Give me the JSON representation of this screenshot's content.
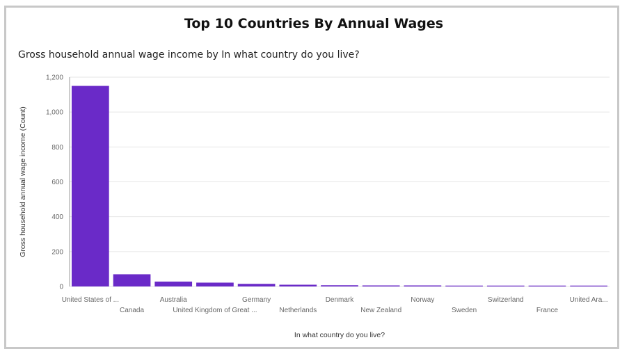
{
  "chart_data": {
    "type": "bar",
    "title": "Top 10 Countries By Annual Wages",
    "subtitle": "Gross household annual wage income by In what country do you live?",
    "xlabel": "In what country do you live?",
    "ylabel": "Gross household annual wage income (Count)",
    "categories": [
      "United States of ...",
      "Canada",
      "Australia",
      "United Kingdom of Great ...",
      "Germany",
      "Netherlands",
      "Denmark",
      "New Zealand",
      "Norway",
      "Sweden",
      "Switzerland",
      "France",
      "United Ara..."
    ],
    "values": [
      1150,
      70,
      28,
      22,
      15,
      10,
      7,
      6,
      6,
      5,
      5,
      5,
      5
    ],
    "ylim": [
      0,
      1200
    ],
    "yticks": [
      0,
      200,
      400,
      600,
      800,
      1000,
      1200
    ],
    "ytick_labels": [
      "0",
      "200",
      "400",
      "600",
      "800",
      "1,000",
      "1,200"
    ],
    "grid": true,
    "bar_color": "#6a2ac8"
  }
}
